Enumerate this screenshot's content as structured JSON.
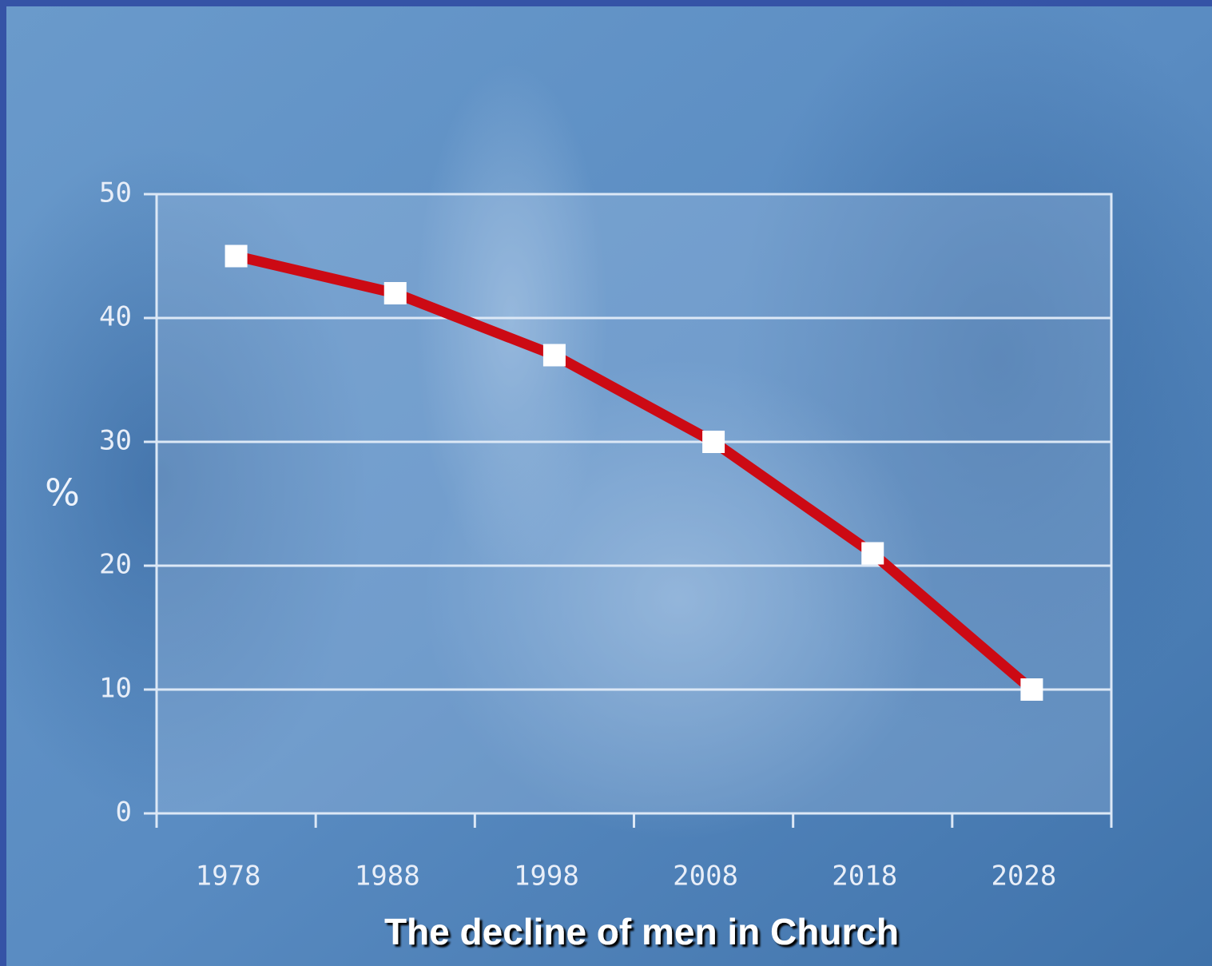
{
  "chart_data": {
    "type": "line",
    "caption": "The decline of men in Church",
    "y_label": "%",
    "categories": [
      "1978",
      "1988",
      "1998",
      "2008",
      "2018",
      "2028"
    ],
    "series": [
      {
        "color": "#cc0a14",
        "values": [
          45,
          42,
          37,
          30,
          21,
          10
        ]
      }
    ],
    "ylim": [
      0,
      50
    ],
    "yticks": [
      0,
      10,
      20,
      30,
      40,
      50
    ],
    "grid": true
  }
}
